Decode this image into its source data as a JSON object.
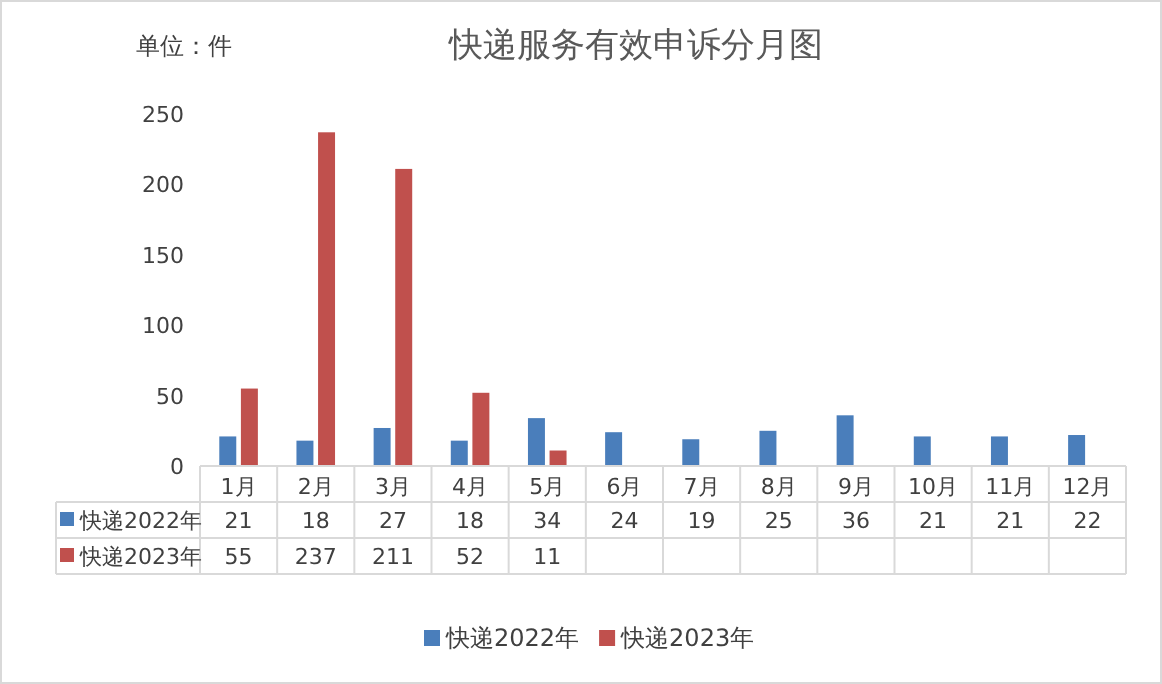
{
  "chart_data": {
    "type": "bar",
    "title": "快递服务有效申诉分月图",
    "annotations": [
      "单位：件"
    ],
    "categories": [
      "1月",
      "2月",
      "3月",
      "4月",
      "5月",
      "6月",
      "7月",
      "8月",
      "9月",
      "10月",
      "11月",
      "12月"
    ],
    "series": [
      {
        "name": "快递2022年",
        "color": "#4a7ebb",
        "values": [
          21,
          18,
          27,
          18,
          34,
          24,
          19,
          25,
          36,
          21,
          21,
          22
        ]
      },
      {
        "name": "快递2023年",
        "color": "#c0504d",
        "values": [
          55,
          237,
          211,
          52,
          11,
          null,
          null,
          null,
          null,
          null,
          null,
          null
        ]
      }
    ],
    "ylim": [
      0,
      250
    ],
    "yticks": [
      0,
      50,
      100,
      150,
      200,
      250
    ],
    "data_labels": true,
    "legend": "bottom",
    "grid": false
  }
}
